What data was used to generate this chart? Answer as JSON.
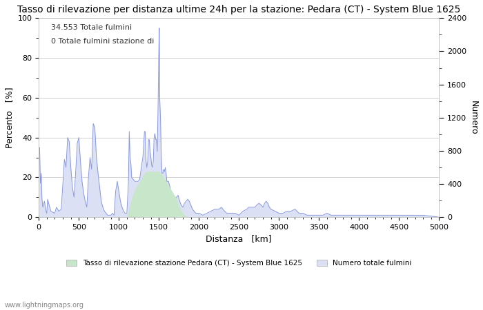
{
  "title": "Tasso di rilevazione per distanza ultime 24h per la stazione: Pedara (CT) - System Blue 1625",
  "xlabel": "Distanza   [km]",
  "ylabel_left": "Percento   [%]",
  "ylabel_right": "Numero",
  "annotation_line1": "34.553 Totale fulmini",
  "annotation_line2": "0 Totale fulmini stazione di",
  "xlim": [
    0,
    5000
  ],
  "ylim_left": [
    0,
    100
  ],
  "ylim_right": [
    0,
    2400
  ],
  "xticks": [
    0,
    500,
    1000,
    1500,
    2000,
    2500,
    3000,
    3500,
    4000,
    4500,
    5000
  ],
  "yticks_left": [
    0,
    20,
    40,
    60,
    80,
    100
  ],
  "yticks_right_major": [
    0,
    400,
    800,
    1200,
    1600,
    2000,
    2400
  ],
  "yticks_right_minor": [
    200,
    600,
    1000,
    1400,
    1800,
    2200
  ],
  "legend_label_green": "Tasso di rilevazione stazione Pedara (CT) - System Blue 1625",
  "legend_label_blue": "Numero totale fulmini",
  "fill_green_color": "#c8e6c9",
  "fill_blue_color": "#dce0f5",
  "line_color": "#8899dd",
  "background_color": "#ffffff",
  "grid_color": "#bbbbbb",
  "watermark": "www.lightningmaps.org",
  "title_fontsize": 10,
  "axis_fontsize": 9,
  "tick_fontsize": 8,
  "annotation_fontsize": 8
}
